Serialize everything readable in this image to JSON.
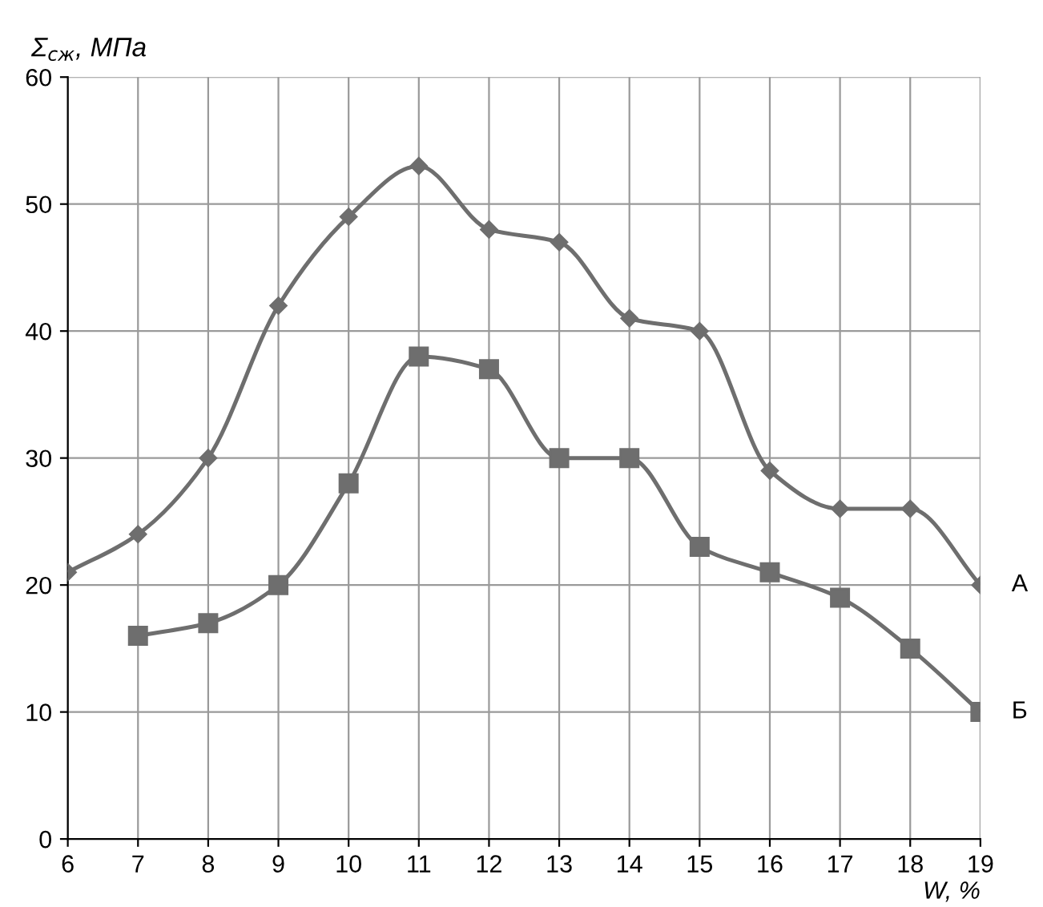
{
  "chart_data": {
    "type": "line",
    "xlabel": "W, %",
    "ylabel": "Σ$_{сж}$, МПа",
    "x": [
      6,
      7,
      8,
      9,
      10,
      11,
      12,
      13,
      14,
      15,
      16,
      17,
      18,
      19
    ],
    "series": [
      {
        "name": "А",
        "color": "#6e6e6e",
        "marker": "diamond",
        "values": [
          21,
          24,
          30,
          42,
          49,
          53,
          48,
          47,
          41,
          40,
          29,
          26,
          26,
          20
        ]
      },
      {
        "name": "Б",
        "color": "#6e6e6e",
        "marker": "square",
        "values": [
          null,
          16,
          17,
          20,
          28,
          38,
          37,
          30,
          30,
          23,
          21,
          19,
          15,
          10
        ]
      }
    ],
    "xlim": [
      6,
      19
    ],
    "ylim": [
      0,
      60
    ],
    "xticks": [
      6,
      7,
      8,
      9,
      10,
      11,
      12,
      13,
      14,
      15,
      16,
      17,
      18,
      19
    ],
    "yticks": [
      0,
      10,
      20,
      30,
      40,
      50,
      60
    ],
    "grid": true,
    "line_style": "solid"
  }
}
